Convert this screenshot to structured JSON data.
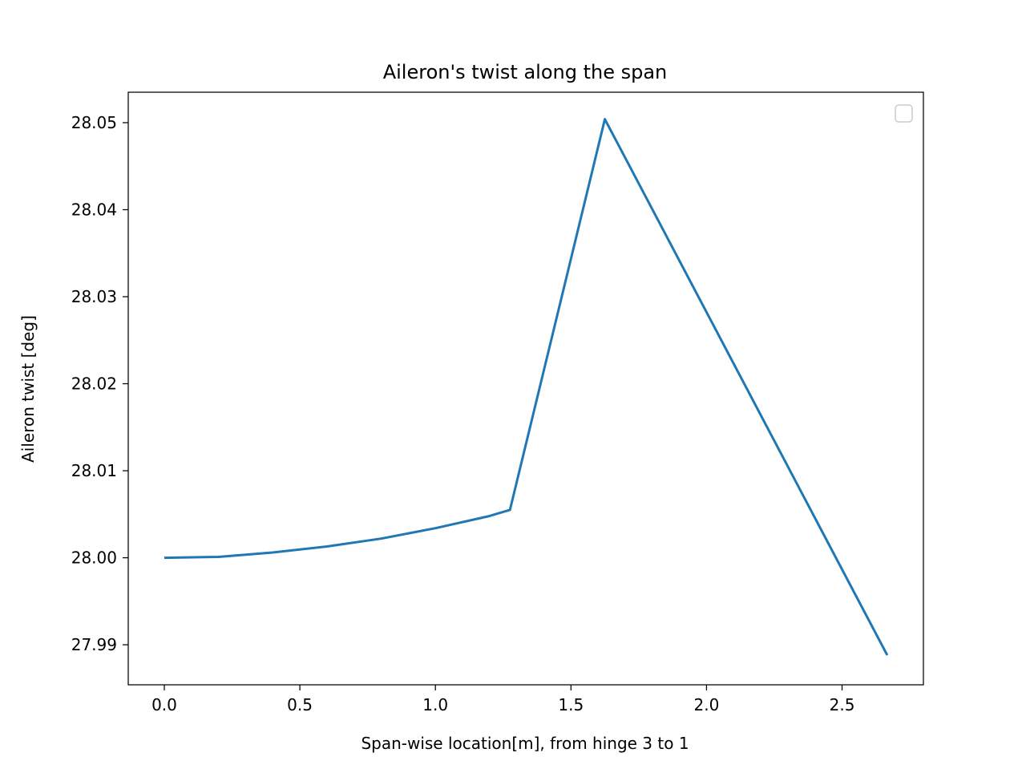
{
  "chart_data": {
    "type": "line",
    "title": "Aileron's twist along the span",
    "xlabel": "Span-wise location[m], from hinge 3 to 1",
    "ylabel": "Aileron twist [deg]",
    "xlim": [
      -0.133,
      2.8
    ],
    "ylim": [
      27.9854,
      28.0535
    ],
    "xticks": [
      0.0,
      0.5,
      1.0,
      1.5,
      2.0,
      2.5
    ],
    "xtick_labels": [
      "0.0",
      "0.5",
      "1.0",
      "1.5",
      "2.0",
      "2.5"
    ],
    "yticks": [
      27.99,
      28.0,
      28.01,
      28.02,
      28.03,
      28.04,
      28.05
    ],
    "ytick_labels": [
      "27.99",
      "28.00",
      "28.01",
      "28.02",
      "28.03",
      "28.04",
      "28.05"
    ],
    "grid": false,
    "legend": "upper-right (empty)",
    "series": [
      {
        "color": "#1f77b4",
        "x": [
          0.0,
          0.2,
          0.4,
          0.6,
          0.8,
          1.0,
          1.2,
          1.275,
          1.625,
          2.6667
        ],
        "y": [
          28.0,
          28.0001,
          28.0006,
          28.0013,
          28.0022,
          28.0034,
          28.0048,
          28.0055,
          28.0504,
          27.9888
        ]
      }
    ]
  }
}
